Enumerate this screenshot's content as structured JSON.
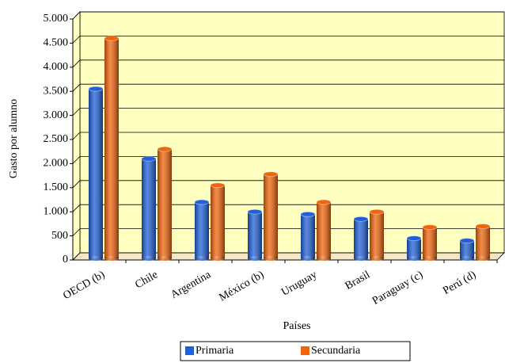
{
  "chart_data": {
    "type": "bar",
    "y_label": "Gasto por alumno",
    "x_label": "Países",
    "categories": [
      "OECD (b)",
      "Chile",
      "Argentina",
      "México (b)",
      "Uruguay",
      "Brasil",
      "Paraguay (c)",
      "Perú (d)"
    ],
    "series": [
      {
        "name": "Primaria",
        "color": "#1f5fd8",
        "values": [
          3550,
          2100,
          1200,
          1000,
          950,
          850,
          450,
          400
        ]
      },
      {
        "name": "Secundaria",
        "color": "#f0640a",
        "values": [
          4600,
          2300,
          1550,
          1780,
          1200,
          1000,
          680,
          700
        ]
      }
    ],
    "ylim": [
      0,
      5000
    ],
    "yticks": [
      0,
      500,
      {
        "value": 1000,
        "label": "1.000"
      },
      {
        "value": 1500,
        "label": "1.500"
      },
      {
        "value": 2000,
        "label": "2.000"
      },
      {
        "value": 2500,
        "label": "2.500"
      },
      {
        "value": 3000,
        "label": "3.000"
      },
      {
        "value": 3500,
        "label": "3.500"
      },
      {
        "value": 4000,
        "label": "4.000"
      },
      {
        "value": 4500,
        "label": "4.500"
      },
      {
        "value": 5000,
        "label": "5.000"
      }
    ],
    "grid": true
  }
}
